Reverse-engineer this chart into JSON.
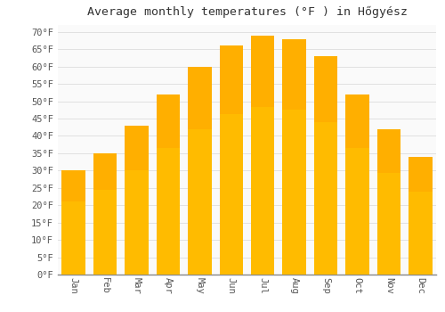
{
  "title": "Average monthly temperatures (°F ) in Hőgyész",
  "months": [
    "Jan",
    "Feb",
    "Mar",
    "Apr",
    "May",
    "Jun",
    "Jul",
    "Aug",
    "Sep",
    "Oct",
    "Nov",
    "Dec"
  ],
  "values": [
    30,
    35,
    43,
    52,
    60,
    66,
    69,
    68,
    63,
    52,
    42,
    34
  ],
  "bar_color_bottom": "#FFC125",
  "bar_color_top": "#FFA500",
  "bar_edge_color": "none",
  "background_color": "#FFFFFF",
  "plot_bg_color": "#FAFAFA",
  "grid_color": "#DDDDDD",
  "ylim": [
    0,
    72
  ],
  "yticks": [
    0,
    5,
    10,
    15,
    20,
    25,
    30,
    35,
    40,
    45,
    50,
    55,
    60,
    65,
    70
  ],
  "title_fontsize": 9.5,
  "tick_fontsize": 7.5,
  "font_family": "monospace"
}
